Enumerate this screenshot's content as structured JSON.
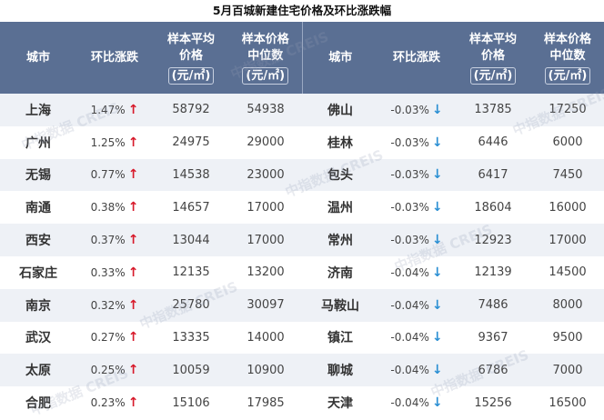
{
  "title": "5月百城新建住宅价格及环比涨跌幅",
  "colors": {
    "header_bg": "#5a6f93",
    "up_arrow": "#d7192a",
    "down_arrow": "#2a8fd3"
  },
  "header": {
    "city": "城市",
    "change": "环比涨跌",
    "avg_l1": "样本平均",
    "avg_l2": "价格",
    "median_l1": "样本价格",
    "median_l2": "中位数",
    "unit": "(元/㎡)"
  },
  "watermark": "中指数据 CREIS",
  "rows": [
    {
      "left": {
        "city": "上海",
        "change": "1.47%",
        "dir": "up",
        "avg": "58792",
        "median": "54938"
      },
      "right": {
        "city": "佛山",
        "change": "-0.03%",
        "dir": "down",
        "avg": "13785",
        "median": "17250"
      }
    },
    {
      "left": {
        "city": "广州",
        "change": "1.25%",
        "dir": "up",
        "avg": "24975",
        "median": "29000"
      },
      "right": {
        "city": "桂林",
        "change": "-0.03%",
        "dir": "down",
        "avg": "6446",
        "median": "6000"
      }
    },
    {
      "left": {
        "city": "无锡",
        "change": "0.77%",
        "dir": "up",
        "avg": "14538",
        "median": "23000"
      },
      "right": {
        "city": "包头",
        "change": "-0.03%",
        "dir": "down",
        "avg": "6417",
        "median": "7450"
      }
    },
    {
      "left": {
        "city": "南通",
        "change": "0.38%",
        "dir": "up",
        "avg": "14657",
        "median": "17000"
      },
      "right": {
        "city": "温州",
        "change": "-0.03%",
        "dir": "down",
        "avg": "18604",
        "median": "16000"
      }
    },
    {
      "left": {
        "city": "西安",
        "change": "0.37%",
        "dir": "up",
        "avg": "13044",
        "median": "17000"
      },
      "right": {
        "city": "常州",
        "change": "-0.03%",
        "dir": "down",
        "avg": "12923",
        "median": "17000"
      }
    },
    {
      "left": {
        "city": "石家庄",
        "change": "0.33%",
        "dir": "up",
        "avg": "12135",
        "median": "13200"
      },
      "right": {
        "city": "济南",
        "change": "-0.04%",
        "dir": "down",
        "avg": "12139",
        "median": "14500"
      }
    },
    {
      "left": {
        "city": "南京",
        "change": "0.32%",
        "dir": "up",
        "avg": "25780",
        "median": "30097"
      },
      "right": {
        "city": "马鞍山",
        "change": "-0.04%",
        "dir": "down",
        "avg": "7486",
        "median": "8000"
      }
    },
    {
      "left": {
        "city": "武汉",
        "change": "0.27%",
        "dir": "up",
        "avg": "13335",
        "median": "14000"
      },
      "right": {
        "city": "镇江",
        "change": "-0.04%",
        "dir": "down",
        "avg": "9367",
        "median": "9500"
      }
    },
    {
      "left": {
        "city": "太原",
        "change": "0.25%",
        "dir": "up",
        "avg": "10059",
        "median": "10900"
      },
      "right": {
        "city": "聊城",
        "change": "-0.04%",
        "dir": "down",
        "avg": "6786",
        "median": "7000"
      }
    },
    {
      "left": {
        "city": "合肥",
        "change": "0.23%",
        "dir": "up",
        "avg": "15106",
        "median": "17985"
      },
      "right": {
        "city": "天津",
        "change": "-0.04%",
        "dir": "down",
        "avg": "15256",
        "median": "16500"
      }
    }
  ]
}
